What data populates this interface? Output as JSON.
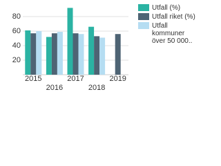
{
  "chart_data": {
    "type": "bar",
    "categories": [
      "2015",
      "2016",
      "2017",
      "2018",
      "2019"
    ],
    "series": [
      {
        "name": "Utfall (%)",
        "color": "#2bb3a3",
        "values": [
          61,
          52,
          92,
          66,
          null
        ]
      },
      {
        "name": "Utfall riket (%)",
        "color": "#4e6474",
        "values": [
          57,
          57,
          57,
          53,
          56
        ]
      },
      {
        "name": "Utfall kommuner över 50 000..",
        "color": "#b5ddf2",
        "values": [
          60,
          59,
          56,
          51,
          null
        ]
      }
    ],
    "ylim": [
      0,
      100
    ],
    "yticks": [
      20,
      40,
      60,
      80
    ],
    "grid": true
  }
}
